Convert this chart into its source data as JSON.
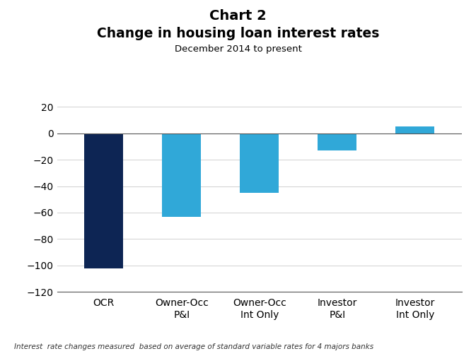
{
  "title_line1": "Chart 2",
  "title_line2": "Change in housing loan interest rates",
  "subtitle": "December 2014 to present",
  "footnote": "Interest  rate changes measured  based on average of standard variable rates for 4 majors banks",
  "categories": [
    "OCR",
    "Owner-Occ\nP&I",
    "Owner-Occ\nInt Only",
    "Investor\nP&I",
    "Investor\nInt Only"
  ],
  "values": [
    -102,
    -63,
    -45,
    -13,
    5
  ],
  "bar_colors": [
    "#0d2554",
    "#30a8d8",
    "#30a8d8",
    "#30a8d8",
    "#30a8d8"
  ],
  "ylim": [
    -120,
    20
  ],
  "yticks": [
    -120,
    -100,
    -80,
    -60,
    -40,
    -20,
    0,
    20
  ],
  "background_color": "#ffffff",
  "bar_width": 0.5
}
